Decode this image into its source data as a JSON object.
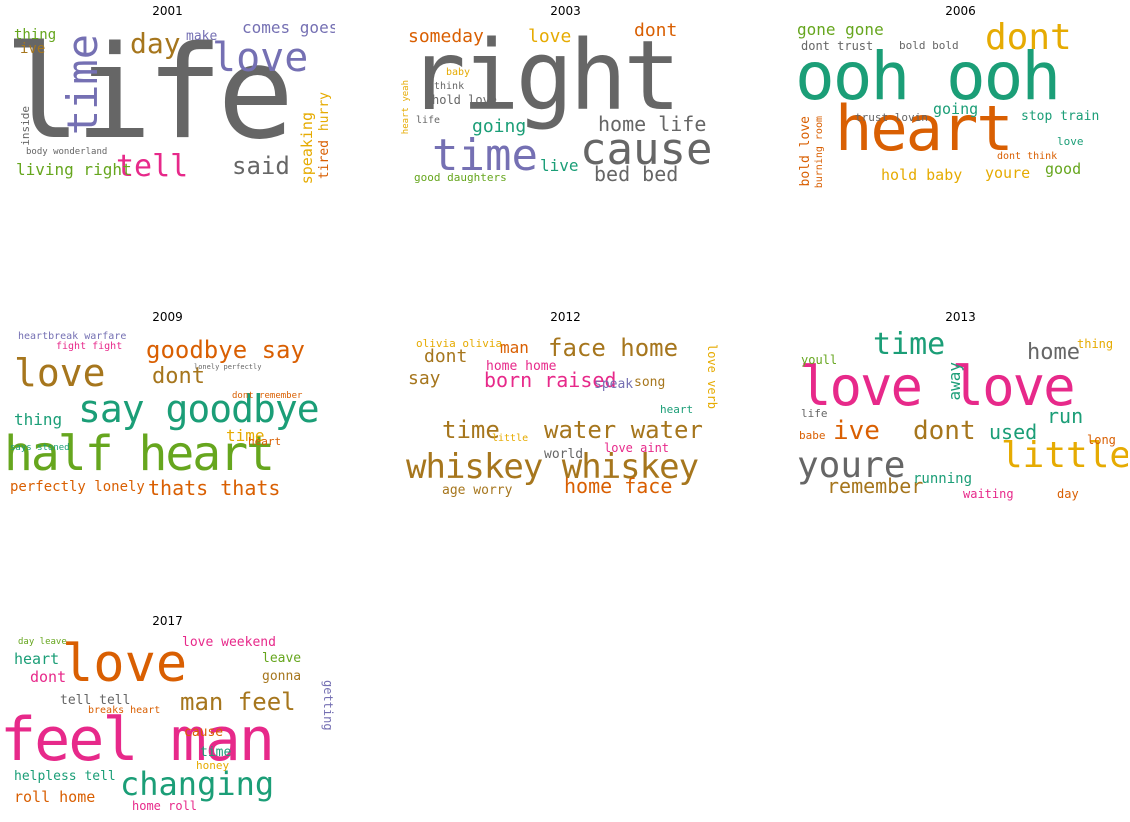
{
  "colors": {
    "gray": "#666666",
    "purple": "#7570b3",
    "pink": "#e7298a",
    "orange": "#d95f02",
    "green": "#1b9e77",
    "olive": "#66a61e",
    "gold": "#e6ab02",
    "brown": "#a6761d"
  },
  "panels": [
    {
      "year": "2001",
      "words": [
        "life",
        "time",
        "love",
        "tell",
        "day",
        "said",
        "comes goes",
        "living right",
        "speaking",
        "tired",
        "hurry",
        "thing",
        "ive",
        "make",
        "inside",
        "body wonderland"
      ]
    },
    {
      "year": "2003",
      "words": [
        "right",
        "cause",
        "time",
        "home life",
        "bed bed",
        "someday",
        "love",
        "dont",
        "going",
        "live",
        "hold love",
        "good daughters",
        "think",
        "baby",
        "heart yeah",
        "life"
      ]
    },
    {
      "year": "2006",
      "words": [
        "ooh ooh",
        "heart",
        "dont",
        "gone gone",
        "dont trust",
        "bold bold",
        "going",
        "trust lovin",
        "stop train",
        "hold baby",
        "youre",
        "good",
        "bold love",
        "burning room",
        "love",
        "dont think"
      ]
    },
    {
      "year": "2009",
      "words": [
        "half heart",
        "say goodbye",
        "love",
        "goodbye say",
        "dont",
        "thats thats",
        "perfectly lonely",
        "thing",
        "time",
        "heartbreak warfare",
        "fight fight",
        "dont remember",
        "heart",
        "says stoned",
        "lonely perfectly"
      ]
    },
    {
      "year": "2012",
      "words": [
        "whiskey whiskey",
        "time",
        "water water",
        "face home",
        "born raised",
        "home face",
        "dont",
        "say",
        "man",
        "home home",
        "age worry",
        "world",
        "love aint",
        "song",
        "olivia olivia",
        "speak",
        "heart",
        "love verb",
        "little"
      ]
    },
    {
      "year": "2013",
      "words": [
        "love love",
        "youre",
        "little",
        "time",
        "ive",
        "dont",
        "home",
        "used",
        "run",
        "remember",
        "away",
        "running",
        "waiting",
        "day",
        "youll",
        "thing",
        "long",
        "life",
        "babe"
      ]
    },
    {
      "year": "2017",
      "words": [
        "feel man",
        "love",
        "changing",
        "man feel",
        "love weekend",
        "heart",
        "dont",
        "tell tell",
        "gonna",
        "leave",
        "cause",
        "time",
        "honey",
        "helpless tell",
        "roll home",
        "home roll",
        "breaks heart",
        "getting",
        "day leave"
      ]
    }
  ]
}
